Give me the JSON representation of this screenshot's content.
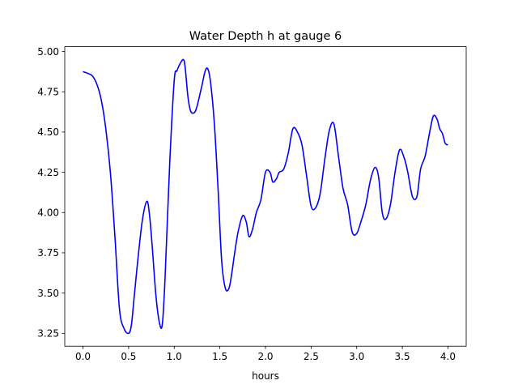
{
  "chart_data": {
    "type": "line",
    "title": "Water Depth h at gauge 6",
    "xlabel": "hours",
    "ylabel": "",
    "xlim": [
      -0.2,
      4.2
    ],
    "ylim": [
      3.17,
      5.03
    ],
    "xticks": [
      0.0,
      0.5,
      1.0,
      1.5,
      2.0,
      2.5,
      3.0,
      3.5,
      4.0
    ],
    "xtick_labels": [
      "0.0",
      "0.5",
      "1.0",
      "1.5",
      "2.0",
      "2.5",
      "3.0",
      "3.5",
      "4.0"
    ],
    "yticks": [
      3.25,
      3.5,
      3.75,
      4.0,
      4.25,
      4.5,
      4.75,
      5.0
    ],
    "ytick_labels": [
      "3.25",
      "3.50",
      "3.75",
      "4.00",
      "4.25",
      "4.50",
      "4.75",
      "5.00"
    ],
    "grid": false,
    "series": [
      {
        "color": "#0000ff",
        "x": [
          0.0,
          0.05,
          0.1,
          0.15,
          0.2,
          0.25,
          0.3,
          0.35,
          0.4,
          0.45,
          0.5,
          0.53,
          0.56,
          0.6,
          0.65,
          0.7,
          0.73,
          0.76,
          0.8,
          0.84,
          0.87,
          0.9,
          0.95,
          1.0,
          1.03,
          1.06,
          1.1,
          1.12,
          1.15,
          1.18,
          1.22,
          1.25,
          1.3,
          1.34,
          1.37,
          1.4,
          1.44,
          1.48,
          1.52,
          1.56,
          1.6,
          1.63,
          1.66,
          1.7,
          1.75,
          1.79,
          1.82,
          1.86,
          1.9,
          1.95,
          2.0,
          2.05,
          2.08,
          2.12,
          2.15,
          2.2,
          2.25,
          2.3,
          2.35,
          2.4,
          2.45,
          2.5,
          2.55,
          2.6,
          2.65,
          2.7,
          2.75,
          2.8,
          2.85,
          2.9,
          2.95,
          3.0,
          3.05,
          3.1,
          3.15,
          3.2,
          3.24,
          3.28,
          3.32,
          3.37,
          3.42,
          3.47,
          3.52,
          3.56,
          3.61,
          3.66,
          3.7,
          3.75,
          3.8,
          3.84,
          3.88,
          3.91,
          3.94,
          3.97,
          4.0
        ],
        "y": [
          4.875,
          4.865,
          4.85,
          4.8,
          4.7,
          4.52,
          4.25,
          3.85,
          3.4,
          3.28,
          3.25,
          3.3,
          3.47,
          3.7,
          3.95,
          4.07,
          3.98,
          3.78,
          3.48,
          3.31,
          3.31,
          3.6,
          4.3,
          4.82,
          4.88,
          4.92,
          4.95,
          4.9,
          4.72,
          4.63,
          4.62,
          4.66,
          4.78,
          4.88,
          4.89,
          4.8,
          4.55,
          4.15,
          3.7,
          3.53,
          3.53,
          3.62,
          3.74,
          3.88,
          3.98,
          3.94,
          3.85,
          3.9,
          4.0,
          4.08,
          4.25,
          4.25,
          4.19,
          4.21,
          4.25,
          4.27,
          4.37,
          4.52,
          4.5,
          4.42,
          4.23,
          4.04,
          4.03,
          4.12,
          4.33,
          4.51,
          4.55,
          4.35,
          4.15,
          4.05,
          3.88,
          3.87,
          3.95,
          4.05,
          4.2,
          4.28,
          4.22,
          4.0,
          3.96,
          4.05,
          4.25,
          4.39,
          4.34,
          4.25,
          4.1,
          4.1,
          4.27,
          4.35,
          4.5,
          4.6,
          4.58,
          4.52,
          4.49,
          4.43,
          4.42
        ]
      }
    ]
  }
}
